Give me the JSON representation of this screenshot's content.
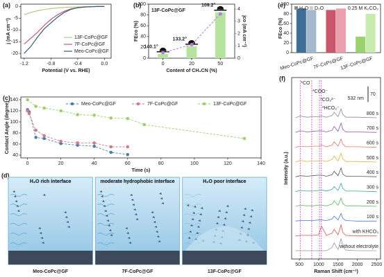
{
  "chart_data": [
    {
      "type": "line",
      "panel_label": "(a)",
      "x_label": "Potential (V vs. RHE)",
      "y_label": "j (mA cm⁻²)",
      "xlim": [
        -1.25,
        0.1
      ],
      "xticks": [
        -1.2,
        -0.8,
        -0.4,
        {
          "value": 0,
          "label": "0.0"
        }
      ],
      "ylim": [
        -22,
        1
      ],
      "yticks": [
        -20,
        -15,
        -10,
        -5,
        0
      ],
      "x": [
        -1.2,
        -1.1,
        -1.0,
        -0.9,
        -0.8,
        -0.7,
        -0.6,
        -0.5,
        -0.4,
        -0.3,
        -0.2,
        -0.1,
        0
      ],
      "series": [
        {
          "name": "13F-CoPc@GF",
          "color": "#b5c98a",
          "values": [
            -3.5,
            -2.5,
            -1.8,
            -1.3,
            -0.9,
            -0.6,
            -0.4,
            -0.3,
            -0.2,
            -0.1,
            -0.05,
            0,
            0
          ]
        },
        {
          "name": "7F-CoPc@GF",
          "color": "#c05a74",
          "values": [
            -16,
            -13.5,
            -11,
            -8,
            -5.5,
            -3.5,
            -2,
            -1,
            -0.5,
            -0.2,
            -0.1,
            0,
            0
          ]
        },
        {
          "name": "Meo-CoPc@GF",
          "color": "#3b5a78",
          "values": [
            -20,
            -17,
            -13,
            -9.5,
            -7,
            -4.5,
            -2.5,
            -1.2,
            -0.5,
            -0.2,
            -0.1,
            0,
            0
          ]
        }
      ]
    },
    {
      "type": "bar",
      "panel_label": "(b)",
      "title": "13F-CoPc@GF",
      "x_label": "Content of CH₃CN (%)",
      "y_label": "FEco (%)",
      "y2_label": "jco (mA cm⁻²)",
      "categories": [
        "0",
        "20",
        "50"
      ],
      "values": [
        8,
        22,
        85
      ],
      "color": "#b6e3a0",
      "ylim": [
        0,
        100
      ],
      "yticks": [
        0,
        20,
        40,
        60,
        80,
        100
      ],
      "y2lim": [
        0,
        4.4
      ],
      "y2ticks": [
        0,
        1,
        2,
        3,
        4
      ],
      "series": [
        {
          "name": "jco",
          "axis": "y2",
          "color": "#b57cd6",
          "values": [
            0.45,
            1.1,
            3.6
          ]
        }
      ],
      "contact_angles": [
        "140.1°",
        "133.2°",
        "109.2°"
      ]
    },
    {
      "type": "grouped_bar",
      "panel_label": "(e)",
      "y_label": "FEco (%)",
      "note": "0.25 M K₂CO₃",
      "categories": [
        "Meo-CoPc@GF",
        "7F-CoPc@GF",
        "13F-CoPc@GF"
      ],
      "ylim": [
        0,
        100
      ],
      "yticks": [
        0,
        20,
        40,
        60,
        80,
        100
      ],
      "series": [
        {
          "name": "H₂O",
          "color": "#8c8c8c",
          "bar_colors": [
            "#3f6e96",
            "#c9566c",
            "#9bd16e"
          ],
          "values": [
            91,
            88,
            33
          ]
        },
        {
          "name": "D₂O",
          "color": "#cfcfcf",
          "bar_colors": [
            "#a4b8cc",
            "#eaa0ae",
            "#c8ecb0"
          ],
          "values": [
            88,
            91,
            80
          ]
        }
      ]
    },
    {
      "type": "line",
      "panel_label": "(c)",
      "x_label": "Time (s)",
      "y_label": "Contact Angle (degree)",
      "xlim": [
        -4,
        140
      ],
      "xticks": [
        0,
        20,
        40,
        60,
        80,
        100,
        120,
        140
      ],
      "ylim": [
        35,
        145
      ],
      "yticks": [
        40,
        60,
        80,
        100,
        120,
        140
      ],
      "series": [
        {
          "name": "Meo-CoPc@GF",
          "color": "#4e7ea8",
          "x": [
            0,
            1,
            5,
            10,
            20,
            30,
            40,
            50,
            60
          ],
          "values": [
            122,
            118,
            72,
            70,
            61,
            58,
            56,
            45,
            41
          ]
        },
        {
          "name": "7F-CoPc@GF",
          "color": "#d07a8e",
          "x": [
            0,
            1,
            5,
            10,
            20,
            30,
            40,
            50,
            60
          ],
          "values": [
            120,
            115,
            85,
            75,
            65,
            62,
            62,
            55,
            55
          ]
        },
        {
          "name": "13F-CoPc@GF",
          "color": "#9bd16e",
          "x": [
            0,
            5,
            10,
            20,
            30,
            40,
            50,
            60,
            70,
            130
          ],
          "values": [
            140,
            128,
            125,
            120,
            113,
            112,
            107,
            106,
            95,
            70
          ]
        }
      ]
    },
    {
      "type": "diagram",
      "panel_label": "(d)",
      "panels": [
        {
          "title": "H₂O rich interface",
          "label": "Meo-CoPc@GF"
        },
        {
          "title": "moderate hydrophobic interface",
          "label": "7F-CoPc@GF"
        },
        {
          "title": "H₂O poor interface",
          "label": "13F-CoPc@GF"
        }
      ]
    },
    {
      "type": "spectra",
      "panel_label": "(f)",
      "x_label": "Raman Shift (cm⁻¹)",
      "y_label": "Intensity (a.u.)",
      "xlim": [
        300,
        2600
      ],
      "xticks": [
        500,
        1000,
        1500,
        2000,
        2500
      ],
      "laser": "532 nm",
      "scale_bar": 70,
      "annotations": [
        {
          "text": "*CO",
          "x": 520
        },
        {
          "text": "*COO⁻",
          "x": 820
        },
        {
          "text": "*CO₃²⁻",
          "x": 1020
        },
        {
          "text": "*HCO₃⁻",
          "x": 1070
        }
      ],
      "x": [
        400,
        520,
        700,
        850,
        1000,
        1070,
        1200,
        1350,
        1400,
        1500,
        1580,
        1620,
        1700,
        2000,
        2500
      ],
      "series": [
        {
          "name": "800 s",
          "color": "#8a8a8a",
          "values": [
            0,
            3,
            1,
            2,
            2,
            3,
            1,
            4,
            10,
            2,
            16,
            6,
            1,
            1,
            0
          ]
        },
        {
          "name": "700 s",
          "color": "#8e5aa8",
          "values": [
            0,
            3,
            1,
            2,
            3,
            3,
            1,
            4,
            11,
            2,
            17,
            6,
            1,
            1,
            0
          ]
        },
        {
          "name": "600 s",
          "color": "#e07a6a",
          "values": [
            0,
            2,
            1,
            2,
            2,
            4,
            1,
            4,
            10,
            2,
            15,
            6,
            1,
            1,
            0
          ]
        },
        {
          "name": "500 s",
          "color": "#e0b43a",
          "values": [
            0,
            3,
            1,
            2,
            2,
            3,
            1,
            5,
            11,
            2,
            16,
            6,
            1,
            1,
            0
          ]
        },
        {
          "name": "400 s",
          "color": "#555555",
          "values": [
            0,
            2,
            1,
            2,
            3,
            3,
            1,
            4,
            10,
            2,
            16,
            5,
            1,
            1,
            0
          ]
        },
        {
          "name": "300 s",
          "color": "#3aa8a0",
          "values": [
            0,
            2,
            1,
            1,
            2,
            3,
            1,
            4,
            9,
            2,
            15,
            6,
            1,
            1,
            0
          ]
        },
        {
          "name": "200 s",
          "color": "#5cb85c",
          "values": [
            0,
            2,
            1,
            1,
            2,
            2,
            1,
            4,
            10,
            2,
            15,
            5,
            1,
            1,
            0
          ]
        },
        {
          "name": "100 s",
          "color": "#4a7ac8",
          "values": [
            0,
            1,
            1,
            1,
            2,
            2,
            1,
            4,
            9,
            2,
            14,
            5,
            1,
            0,
            0
          ]
        },
        {
          "name": "with KHCO₃",
          "color": "#d9534f",
          "values": [
            0,
            1,
            1,
            1,
            2,
            18,
            1,
            5,
            12,
            2,
            20,
            7,
            1,
            0,
            0
          ]
        },
        {
          "name": "without electrolyte",
          "color": "#999999",
          "values": [
            0,
            0,
            0,
            0,
            0,
            0,
            0,
            6,
            14,
            2,
            22,
            8,
            1,
            0,
            0
          ]
        }
      ]
    }
  ]
}
